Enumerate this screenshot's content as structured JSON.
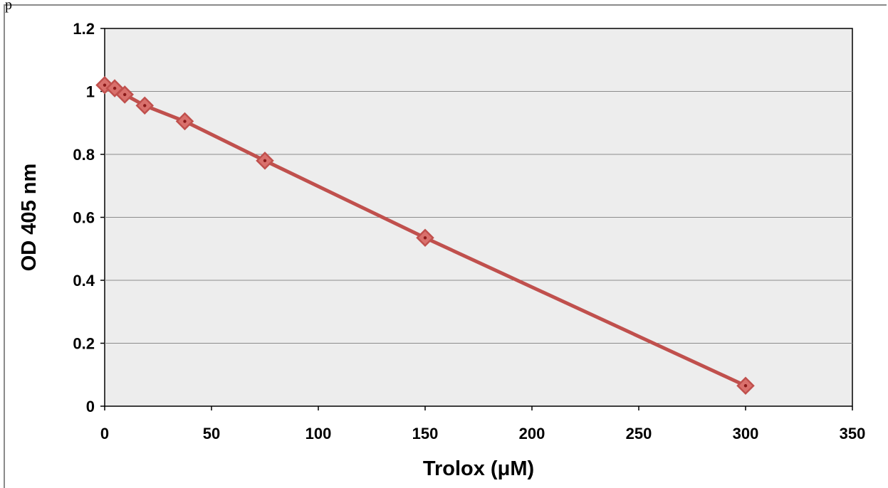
{
  "corner_text": "p",
  "chart_data": {
    "type": "scatter",
    "title": "",
    "xlabel": "Trolox (μM)",
    "ylabel": "OD 405 nm",
    "xlim": [
      0,
      350
    ],
    "ylim": [
      0,
      1.2
    ],
    "x_ticks": [
      0,
      50,
      100,
      150,
      200,
      250,
      300,
      350
    ],
    "y_ticks": [
      0,
      0.2,
      0.4,
      0.6,
      0.8,
      1,
      1.2
    ],
    "grid": "horizontal",
    "series": [
      {
        "x": [
          0,
          4.7,
          9.4,
          18.75,
          37.5,
          75,
          150,
          300
        ],
        "y": [
          1.02,
          1.01,
          0.99,
          0.955,
          0.905,
          0.78,
          0.535,
          0.065
        ]
      }
    ],
    "colors": {
      "series": "#c0504d",
      "plot_bg": "#ededed",
      "grid": "#8c8c8c"
    }
  }
}
